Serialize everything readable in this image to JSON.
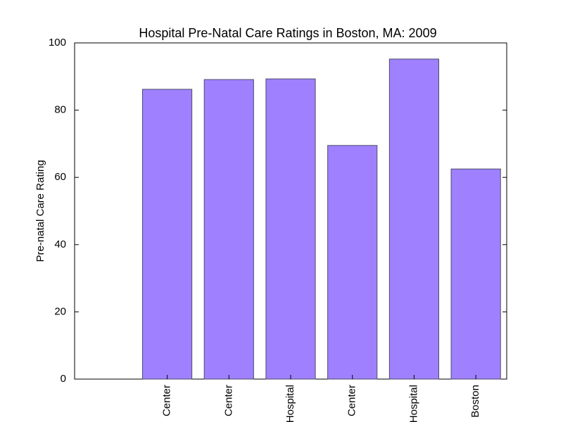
{
  "chart_data": {
    "type": "bar",
    "title": "Hospital Pre-Natal Care Ratings in Boston, MA: 2009",
    "xlabel": "",
    "ylabel": "Pre-natal Care Rating",
    "categories": [
      "Center",
      "Center",
      "Hospital",
      "Center",
      "Hospital",
      "Boston"
    ],
    "values": [
      86.2,
      89.1,
      89.3,
      69.5,
      95.2,
      62.5
    ],
    "ylim": [
      0,
      100
    ],
    "yticks": [
      0,
      20,
      40,
      60,
      80,
      100
    ],
    "ytick_labels": [
      "0",
      "20",
      "40",
      "60",
      "80",
      "100"
    ],
    "grid": false,
    "legend": "none",
    "bar_color": "#9f80ff",
    "bar_edge_color": "#4d4d66"
  }
}
